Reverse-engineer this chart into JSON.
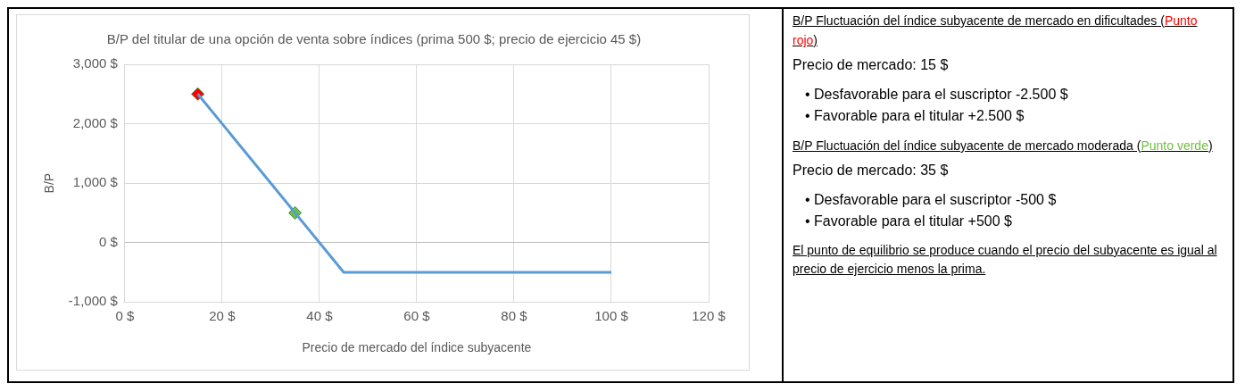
{
  "chart_data": {
    "type": "line",
    "title": "B/P del titular de una opción de venta sobre índices (prima 500 $; precio de ejercicio 45 $)",
    "xlabel": "Precio de mercado del índice subyacente",
    "ylabel": "B/P",
    "series": [
      {
        "color": "#5b9bd5",
        "x": [
          15,
          45,
          100
        ],
        "values": [
          2500,
          -500,
          -500
        ],
        "marker": "none"
      },
      {
        "name": "Punto rojo",
        "type": "scatter",
        "color": "#ff0000",
        "x": [
          15
        ],
        "values": [
          2500
        ],
        "marker": "diamond"
      },
      {
        "name": "Punto verde",
        "type": "scatter",
        "color": "#70c040",
        "x": [
          35
        ],
        "values": [
          500
        ],
        "marker": "diamond"
      }
    ],
    "xlim": [
      0,
      120
    ],
    "xticks": [
      {
        "value": 0,
        "label": "0 $"
      },
      {
        "value": 20,
        "label": "20 $"
      },
      {
        "value": 40,
        "label": "40 $"
      },
      {
        "value": 60,
        "label": "60 $"
      },
      {
        "value": 80,
        "label": "80 $"
      },
      {
        "value": 100,
        "label": "100 $"
      },
      {
        "value": 120,
        "label": "120 $"
      }
    ],
    "ylim": [
      -1000,
      3000
    ],
    "yticks": [
      {
        "value": -1000,
        "label": "-1,000 $"
      },
      {
        "value": 0,
        "label": "0 $"
      },
      {
        "value": 1000,
        "label": "1,000 $"
      },
      {
        "value": 2000,
        "label": "2,000 $"
      },
      {
        "value": 3000,
        "label": "3,000 $"
      }
    ],
    "grid": true,
    "legend": false,
    "annotations": [
      "B/P Fluctuación del índice subyacente de mercado en dificultades (",
      ")",
      "Precio de mercado: 15 $",
      "• Desfavorable para el suscriptor -2.500 $",
      "• Favorable para el titular +2.500 $",
      "B/P Fluctuación del índice subyacente de mercado moderada (",
      ")",
      "Precio de mercado: 35 $",
      "• Desfavorable para el suscriptor -500 $",
      "• Favorable para el titular +500 $",
      "El punto de equilibrio se produce cuando el precio del subyacente es igual al precio de ejercicio menos la prima."
    ]
  }
}
